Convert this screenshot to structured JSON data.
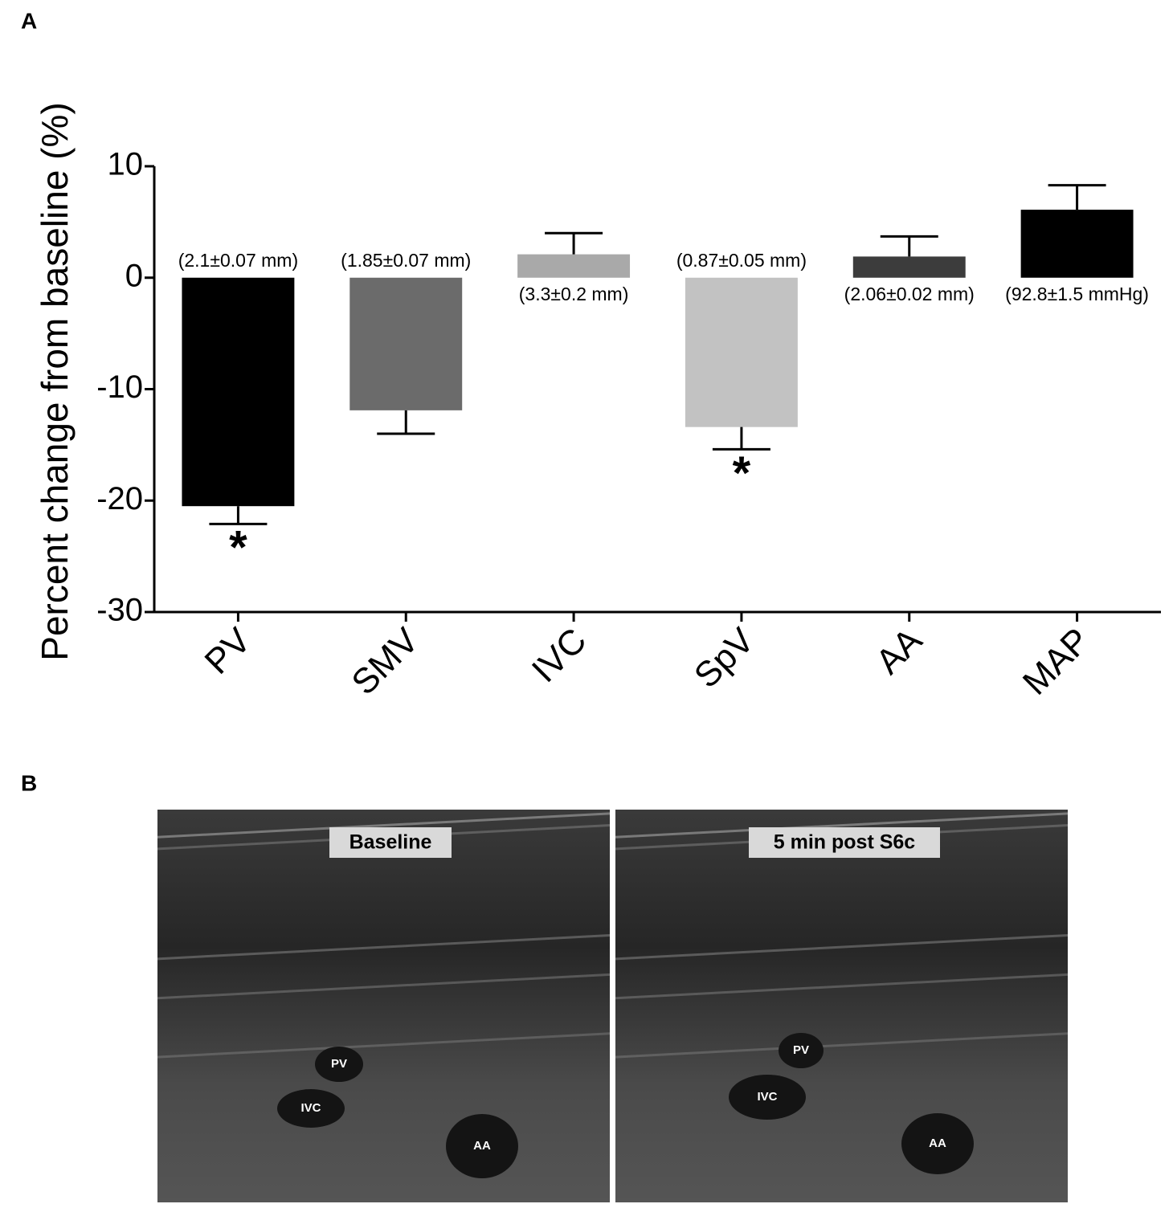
{
  "panel_labels": [
    "A",
    "B"
  ],
  "chart_data": {
    "type": "bar",
    "y_label": "Percent change from baseline (%)",
    "categories": [
      "PV",
      "SMV",
      "IVC",
      "SpV",
      "AA",
      "MAP"
    ],
    "values": [
      -20.5,
      -11.9,
      2.1,
      -13.4,
      1.9,
      6.1
    ],
    "errors": [
      1.6,
      2.1,
      1.9,
      2.0,
      1.8,
      2.2
    ],
    "colors": [
      "#000000",
      "#6b6b6b",
      "#a9a9a9",
      "#c2c2c2",
      "#3c3c3c",
      "#000000"
    ],
    "annotations": [
      "(2.1±0.07 mm)",
      "(1.85±0.07 mm)",
      "(3.3±0.2 mm)",
      "(0.87±0.05 mm)",
      "(2.06±0.02 mm)",
      "(92.8±1.5 mmHg)"
    ],
    "significance": [
      "*",
      null,
      null,
      "*",
      null,
      null
    ],
    "ylim": [
      -30,
      10
    ],
    "yticks": [
      -30,
      -20,
      -10,
      0,
      10
    ]
  },
  "images": [
    {
      "label": "Baseline",
      "structures": [
        "PV",
        "IVC",
        "AA"
      ]
    },
    {
      "label": "5 min post S6c",
      "structures": [
        "PV",
        "IVC",
        "AA"
      ]
    }
  ]
}
